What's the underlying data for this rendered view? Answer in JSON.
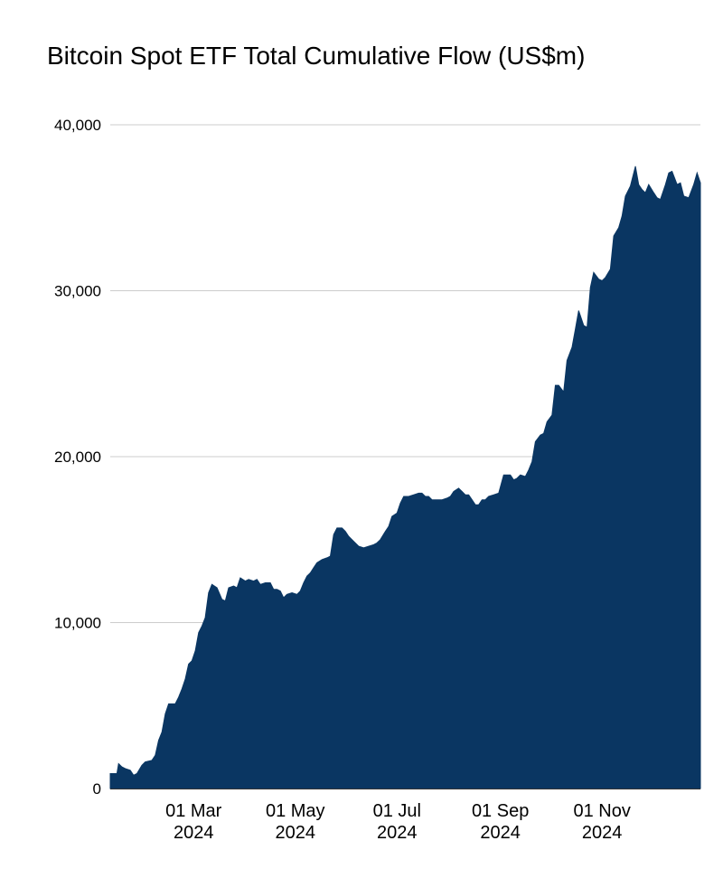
{
  "chart_data": {
    "type": "area",
    "title": "Bitcoin Spot ETF Total Cumulative Flow (US$m)",
    "xlabel": "",
    "ylabel": "",
    "ylim": [
      0,
      40000
    ],
    "xlim": [
      "2024-01-11",
      "2024-12-30"
    ],
    "grid": true,
    "legend": "none",
    "colors": {
      "area": "#0a3662",
      "grid": "#cccccc",
      "axis": "#333333"
    },
    "yticks": [
      {
        "value": 0,
        "label": "0"
      },
      {
        "value": 10000,
        "label": "10,000"
      },
      {
        "value": 20000,
        "label": "20,000"
      },
      {
        "value": 30000,
        "label": "30,000"
      },
      {
        "value": 40000,
        "label": "40,000"
      }
    ],
    "xticks": [
      {
        "date": "2024-03-01",
        "line1": "01 Mar",
        "line2": "2024"
      },
      {
        "date": "2024-05-01",
        "line1": "01 May",
        "line2": "2024"
      },
      {
        "date": "2024-07-01",
        "line1": "01 Jul",
        "line2": "2024"
      },
      {
        "date": "2024-09-01",
        "line1": "01 Sep",
        "line2": "2024"
      },
      {
        "date": "2024-11-01",
        "line1": "01 Nov",
        "line2": "2024"
      }
    ],
    "series": [
      {
        "points": [
          [
            "2024-01-11",
            900
          ],
          [
            "2024-01-15",
            900
          ],
          [
            "2024-01-16",
            1500
          ],
          [
            "2024-01-18",
            1300
          ],
          [
            "2024-01-20",
            1200
          ],
          [
            "2024-01-23",
            1100
          ],
          [
            "2024-01-25",
            800
          ],
          [
            "2024-01-27",
            900
          ],
          [
            "2024-01-30",
            1400
          ],
          [
            "2024-02-01",
            1600
          ],
          [
            "2024-02-05",
            1700
          ],
          [
            "2024-02-07",
            2000
          ],
          [
            "2024-02-09",
            2900
          ],
          [
            "2024-02-11",
            3400
          ],
          [
            "2024-02-13",
            4500
          ],
          [
            "2024-02-15",
            5100
          ],
          [
            "2024-02-19",
            5100
          ],
          [
            "2024-02-21",
            5500
          ],
          [
            "2024-02-23",
            6000
          ],
          [
            "2024-02-25",
            6600
          ],
          [
            "2024-02-27",
            7500
          ],
          [
            "2024-02-29",
            7700
          ],
          [
            "2024-03-02",
            8300
          ],
          [
            "2024-03-04",
            9400
          ],
          [
            "2024-03-06",
            9800
          ],
          [
            "2024-03-08",
            10300
          ],
          [
            "2024-03-10",
            11800
          ],
          [
            "2024-03-12",
            12300
          ],
          [
            "2024-03-15",
            12100
          ],
          [
            "2024-03-18",
            11400
          ],
          [
            "2024-03-20",
            11300
          ],
          [
            "2024-03-22",
            12100
          ],
          [
            "2024-03-25",
            12200
          ],
          [
            "2024-03-27",
            12100
          ],
          [
            "2024-03-29",
            12700
          ],
          [
            "2024-04-01",
            12500
          ],
          [
            "2024-04-03",
            12600
          ],
          [
            "2024-04-06",
            12500
          ],
          [
            "2024-04-08",
            12600
          ],
          [
            "2024-04-10",
            12300
          ],
          [
            "2024-04-13",
            12400
          ],
          [
            "2024-04-16",
            12400
          ],
          [
            "2024-04-18",
            12000
          ],
          [
            "2024-04-20",
            12000
          ],
          [
            "2024-04-22",
            11900
          ],
          [
            "2024-04-24",
            11500
          ],
          [
            "2024-04-26",
            11700
          ],
          [
            "2024-04-29",
            11800
          ],
          [
            "2024-05-02",
            11700
          ],
          [
            "2024-05-04",
            11900
          ],
          [
            "2024-05-06",
            12400
          ],
          [
            "2024-05-08",
            12800
          ],
          [
            "2024-05-10",
            13000
          ],
          [
            "2024-05-12",
            13300
          ],
          [
            "2024-05-14",
            13600
          ],
          [
            "2024-05-17",
            13800
          ],
          [
            "2024-05-20",
            13900
          ],
          [
            "2024-05-22",
            14000
          ],
          [
            "2024-05-24",
            15300
          ],
          [
            "2024-05-26",
            15700
          ],
          [
            "2024-05-29",
            15700
          ],
          [
            "2024-05-31",
            15500
          ],
          [
            "2024-06-02",
            15200
          ],
          [
            "2024-06-05",
            14900
          ],
          [
            "2024-06-08",
            14600
          ],
          [
            "2024-06-11",
            14500
          ],
          [
            "2024-06-14",
            14600
          ],
          [
            "2024-06-17",
            14700
          ],
          [
            "2024-06-19",
            14800
          ],
          [
            "2024-06-21",
            15000
          ],
          [
            "2024-06-24",
            15500
          ],
          [
            "2024-06-26",
            15800
          ],
          [
            "2024-06-28",
            16400
          ],
          [
            "2024-07-01",
            16600
          ],
          [
            "2024-07-03",
            17200
          ],
          [
            "2024-07-05",
            17600
          ],
          [
            "2024-07-08",
            17600
          ],
          [
            "2024-07-11",
            17700
          ],
          [
            "2024-07-14",
            17800
          ],
          [
            "2024-07-16",
            17800
          ],
          [
            "2024-07-18",
            17600
          ],
          [
            "2024-07-20",
            17600
          ],
          [
            "2024-07-22",
            17400
          ],
          [
            "2024-07-25",
            17400
          ],
          [
            "2024-07-28",
            17400
          ],
          [
            "2024-07-31",
            17500
          ],
          [
            "2024-08-02",
            17600
          ],
          [
            "2024-08-04",
            17900
          ],
          [
            "2024-08-07",
            18100
          ],
          [
            "2024-08-09",
            17900
          ],
          [
            "2024-08-11",
            17700
          ],
          [
            "2024-08-13",
            17700
          ],
          [
            "2024-08-15",
            17400
          ],
          [
            "2024-08-17",
            17100
          ],
          [
            "2024-08-19",
            17100
          ],
          [
            "2024-08-21",
            17400
          ],
          [
            "2024-08-23",
            17400
          ],
          [
            "2024-08-25",
            17600
          ],
          [
            "2024-08-28",
            17700
          ],
          [
            "2024-08-31",
            17800
          ],
          [
            "2024-09-03",
            18900
          ],
          [
            "2024-09-05",
            18900
          ],
          [
            "2024-09-07",
            18900
          ],
          [
            "2024-09-09",
            18600
          ],
          [
            "2024-09-11",
            18700
          ],
          [
            "2024-09-13",
            18900
          ],
          [
            "2024-09-16",
            18800
          ],
          [
            "2024-09-18",
            19200
          ],
          [
            "2024-09-20",
            19700
          ],
          [
            "2024-09-22",
            20900
          ],
          [
            "2024-09-25",
            21300
          ],
          [
            "2024-09-27",
            21400
          ],
          [
            "2024-09-29",
            22100
          ],
          [
            "2024-10-02",
            22500
          ],
          [
            "2024-10-04",
            24300
          ],
          [
            "2024-10-06",
            24300
          ],
          [
            "2024-10-09",
            23900
          ],
          [
            "2024-10-11",
            25800
          ],
          [
            "2024-10-14",
            26600
          ],
          [
            "2024-10-16",
            27700
          ],
          [
            "2024-10-18",
            28800
          ],
          [
            "2024-10-21",
            27900
          ],
          [
            "2024-10-23",
            27800
          ],
          [
            "2024-10-25",
            30200
          ],
          [
            "2024-10-27",
            31100
          ],
          [
            "2024-10-30",
            30700
          ],
          [
            "2024-11-01",
            30600
          ],
          [
            "2024-11-03",
            30800
          ],
          [
            "2024-11-06",
            31300
          ],
          [
            "2024-11-08",
            33300
          ],
          [
            "2024-11-11",
            33800
          ],
          [
            "2024-11-13",
            34500
          ],
          [
            "2024-11-15",
            35700
          ],
          [
            "2024-11-18",
            36300
          ],
          [
            "2024-11-21",
            37500
          ],
          [
            "2024-11-23",
            36400
          ],
          [
            "2024-11-25",
            36100
          ],
          [
            "2024-11-27",
            35900
          ],
          [
            "2024-11-29",
            36400
          ],
          [
            "2024-12-02",
            35900
          ],
          [
            "2024-12-04",
            35600
          ],
          [
            "2024-12-06",
            35500
          ],
          [
            "2024-12-09",
            36400
          ],
          [
            "2024-12-11",
            37100
          ],
          [
            "2024-12-13",
            37200
          ],
          [
            "2024-12-16",
            36400
          ],
          [
            "2024-12-18",
            36500
          ],
          [
            "2024-12-20",
            35700
          ],
          [
            "2024-12-23",
            35600
          ],
          [
            "2024-12-26",
            36400
          ],
          [
            "2024-12-28",
            37100
          ],
          [
            "2024-12-30",
            36500
          ]
        ]
      }
    ]
  }
}
